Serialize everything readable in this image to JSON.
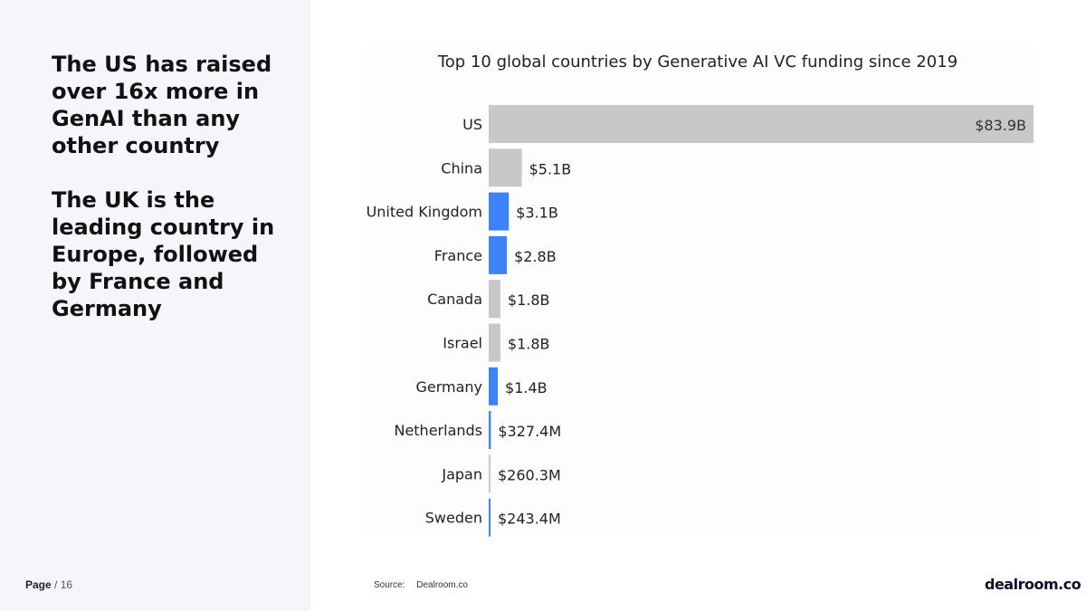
{
  "headline": {
    "line1": "The US has raised over 16x more in GenAI than any other country",
    "line2": "The UK is the leading country in Europe, followed by France and Germany"
  },
  "footer": {
    "page_label": "Page",
    "page_number": "/ 16"
  },
  "source": {
    "label": "Source:",
    "value": "Dealroom.co"
  },
  "logo": {
    "text": "dealroom.co"
  },
  "colors": {
    "highlight": "#3d83f7",
    "neutral": "#c8c8c8"
  },
  "chart_data": {
    "type": "bar",
    "orientation": "horizontal",
    "title": "Top 10 global countries by Generative AI VC funding since 2019",
    "categories": [
      "US",
      "China",
      "United Kingdom",
      "France",
      "Canada",
      "Israel",
      "Germany",
      "Netherlands",
      "Japan",
      "Sweden"
    ],
    "values": [
      83.9,
      5.1,
      3.1,
      2.8,
      1.8,
      1.8,
      1.4,
      0.3274,
      0.2603,
      0.2434
    ],
    "value_labels": [
      "$83.9B",
      "$5.1B",
      "$3.1B",
      "$2.8B",
      "$1.8B",
      "$1.8B",
      "$1.4B",
      "$327.4M",
      "$260.3M",
      "$243.4M"
    ],
    "unit": "USD billions",
    "highlighted": [
      "United Kingdom",
      "France",
      "Germany",
      "Netherlands",
      "Sweden"
    ],
    "xlim": [
      0,
      83.9
    ],
    "grid": false,
    "legend": "none"
  }
}
